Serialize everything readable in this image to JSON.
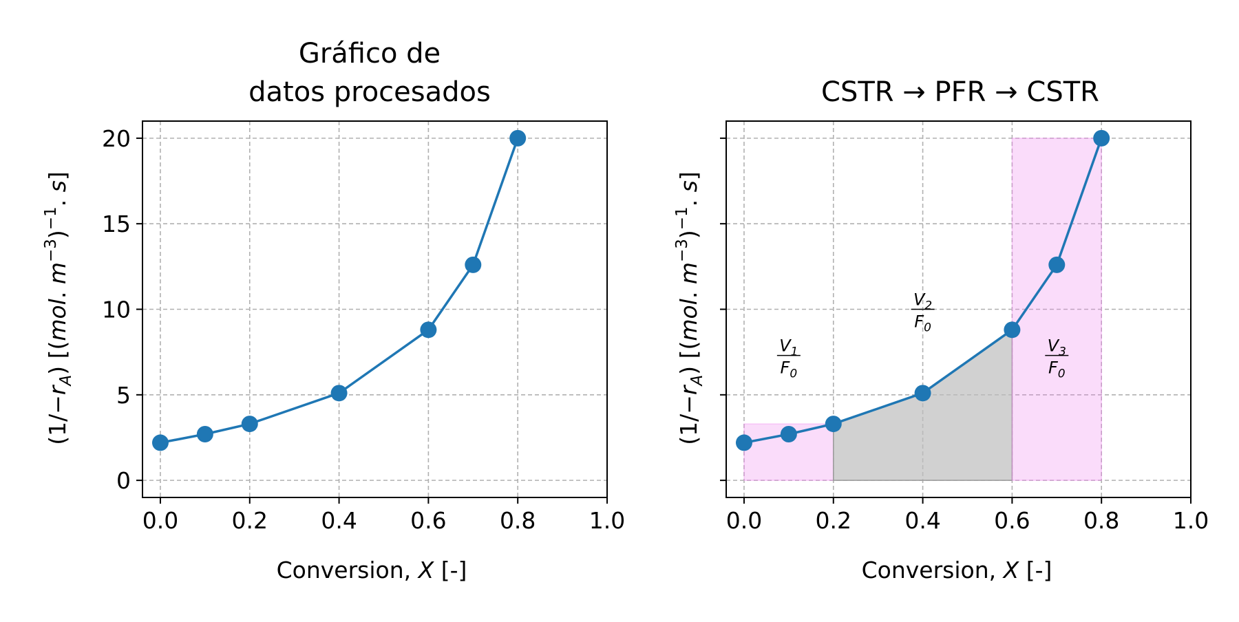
{
  "chart_data": [
    {
      "type": "line",
      "title_lines": [
        "Gráfico de",
        "datos procesados"
      ],
      "xlabel": "Conversion, X [-]",
      "ylabel": "(1/−rA) [(mol. m−3)−1. s]",
      "xlim": [
        -0.04,
        1.0
      ],
      "ylim": [
        -1.0,
        21.0
      ],
      "xticks": [
        "0.0",
        "0.2",
        "0.4",
        "0.6",
        "0.8",
        "1.0"
      ],
      "yticks": [
        "0",
        "5",
        "10",
        "15",
        "20"
      ],
      "grid": true,
      "series": [
        {
          "color": "#1f77b4",
          "x": [
            0.0,
            0.1,
            0.2,
            0.4,
            0.6,
            0.7,
            0.8
          ],
          "y": [
            2.2,
            2.7,
            3.3,
            5.1,
            8.8,
            12.6,
            20.0
          ]
        }
      ]
    },
    {
      "type": "line",
      "title": "CSTR → PFR → CSTR",
      "xlabel": "Conversion, X [-]",
      "ylabel": "(1/−rA) [(mol. m−3)−1. s]",
      "xlim": [
        -0.04,
        1.0
      ],
      "ylim": [
        -1.0,
        21.0
      ],
      "xticks": [
        "0.0",
        "0.2",
        "0.4",
        "0.6",
        "0.8",
        "1.0"
      ],
      "yticks": [],
      "grid": true,
      "series": [
        {
          "color": "#1f77b4",
          "x": [
            0.0,
            0.1,
            0.2,
            0.4,
            0.6,
            0.7,
            0.8
          ],
          "y": [
            2.2,
            2.7,
            3.3,
            5.1,
            8.8,
            12.6,
            20.0
          ]
        }
      ],
      "regions": [
        {
          "kind": "rect",
          "x0": 0.0,
          "x1": 0.2,
          "y": 3.3,
          "color": "#ee82ee",
          "label": "V1/F0"
        },
        {
          "kind": "under-curve",
          "x0": 0.2,
          "x1": 0.6,
          "color": "#bdbdbd",
          "label": "V2/F0"
        },
        {
          "kind": "rect",
          "x0": 0.6,
          "x1": 0.8,
          "y": 20.0,
          "color": "#ee82ee",
          "label": "V3/F0"
        }
      ],
      "annotations": [
        {
          "num": "V",
          "num_sub": "1",
          "den": "F",
          "den_sub": "0",
          "x": 0.1,
          "y": 7.3
        },
        {
          "num": "V",
          "num_sub": "2",
          "den": "F",
          "den_sub": "0",
          "x": 0.4,
          "y": 10.0
        },
        {
          "num": "V",
          "num_sub": "3",
          "den": "F",
          "den_sub": "0",
          "x": 0.7,
          "y": 7.3
        }
      ]
    }
  ]
}
